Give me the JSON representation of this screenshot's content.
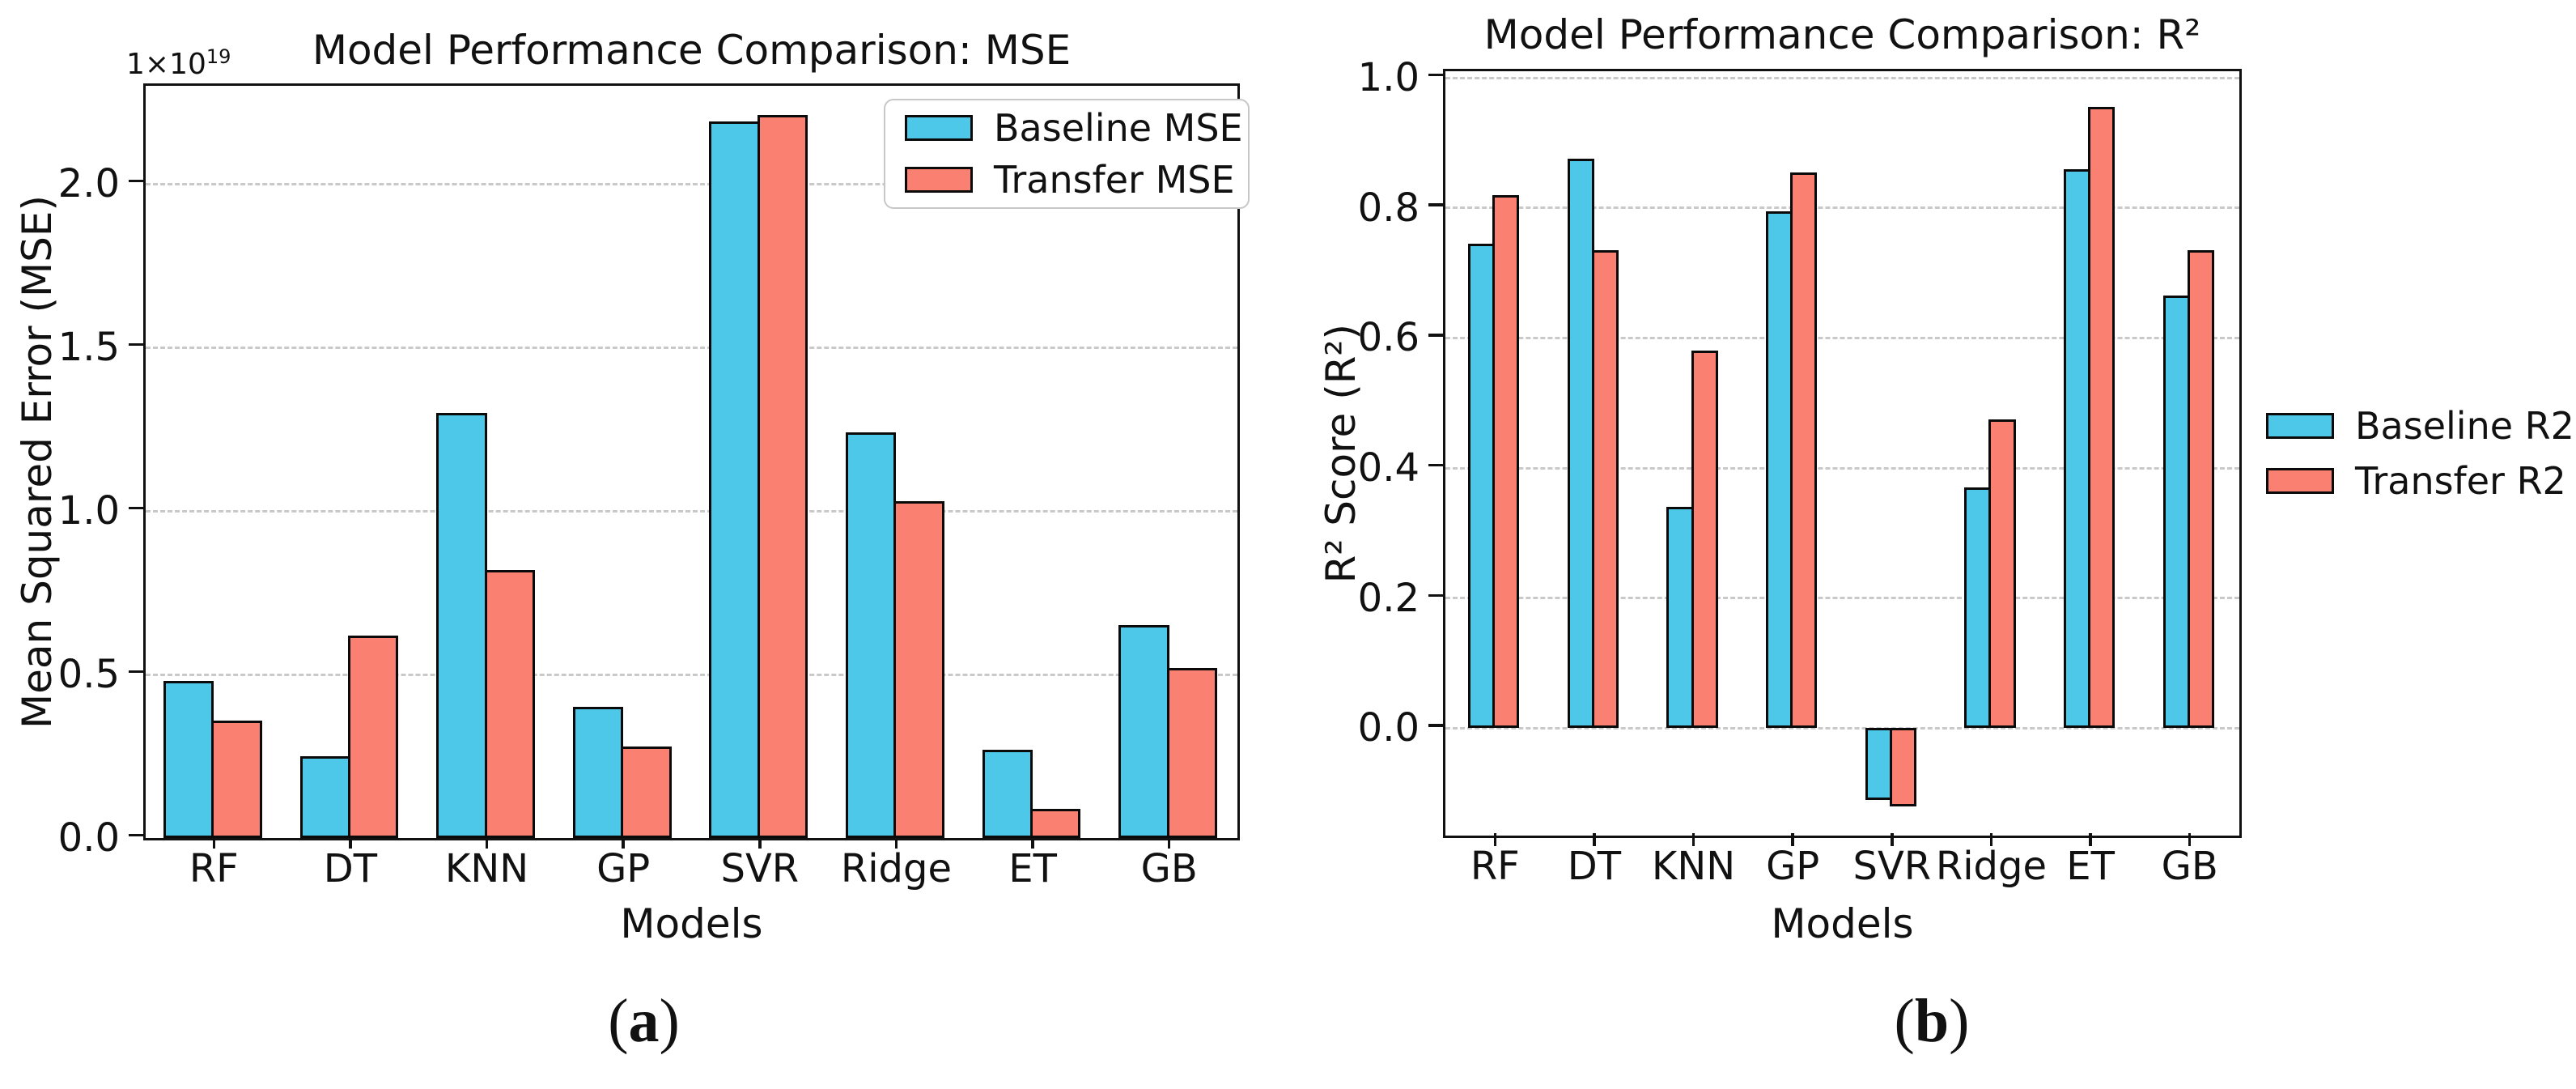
{
  "figure": {
    "captions": [
      {
        "open": "(",
        "letter": "a",
        "close": ")"
      },
      {
        "open": "(",
        "letter": "b",
        "close": ")"
      }
    ]
  },
  "chart_data": [
    {
      "id": "mse",
      "type": "bar",
      "title": "Model Performance Comparison: MSE",
      "xlabel": "Models",
      "ylabel": "Mean Squared Error (MSE)",
      "offset_text": "1×10",
      "offset_exponent": "19",
      "categories": [
        "RF",
        "DT",
        "KNN",
        "GP",
        "SVR",
        "Ridge",
        "ET",
        "GB"
      ],
      "series": [
        {
          "name": "Baseline MSE",
          "color": "#4EC8E8",
          "values": [
            0.48,
            0.25,
            1.3,
            0.4,
            2.19,
            1.24,
            0.27,
            0.65
          ]
        },
        {
          "name": "Transfer MSE",
          "color": "#FA8072",
          "values": [
            0.36,
            0.62,
            0.82,
            0.28,
            2.21,
            1.03,
            0.09,
            0.52
          ]
        }
      ],
      "ylim": [
        0,
        2.3
      ],
      "yticks": [
        0.0,
        0.5,
        1.0,
        1.5,
        2.0
      ],
      "ytick_labels": [
        "0.0",
        "0.5",
        "1.0",
        "1.5",
        "2.0"
      ],
      "grid": true,
      "legend_position": "upper-right-inside",
      "layout": {
        "bar_frac": 0.37
      }
    },
    {
      "id": "r2",
      "type": "bar",
      "title": "Model Performance Comparison: R²",
      "xlabel": "Models",
      "ylabel": "R² Score (R²)",
      "categories": [
        "RF",
        "DT",
        "KNN",
        "GP",
        "SVR",
        "Ridge",
        "ET",
        "GB"
      ],
      "series": [
        {
          "name": "Baseline R2",
          "color": "#4EC8E8",
          "values": [
            0.745,
            0.875,
            0.34,
            0.795,
            -0.11,
            0.37,
            0.86,
            0.665
          ]
        },
        {
          "name": "Transfer R2",
          "color": "#FA8072",
          "values": [
            0.82,
            0.735,
            0.58,
            0.855,
            -0.12,
            0.475,
            0.955,
            0.735
          ]
        }
      ],
      "ylim": [
        -0.165,
        1.01
      ],
      "yticks": [
        0.0,
        0.2,
        0.4,
        0.6,
        0.8,
        1.0
      ],
      "ytick_labels": [
        "0.0",
        "0.2",
        "0.4",
        "0.6",
        "0.8",
        "1.0"
      ],
      "grid": true,
      "legend_position": "center-right-outside",
      "layout": {
        "bar_frac": 0.27
      }
    }
  ]
}
